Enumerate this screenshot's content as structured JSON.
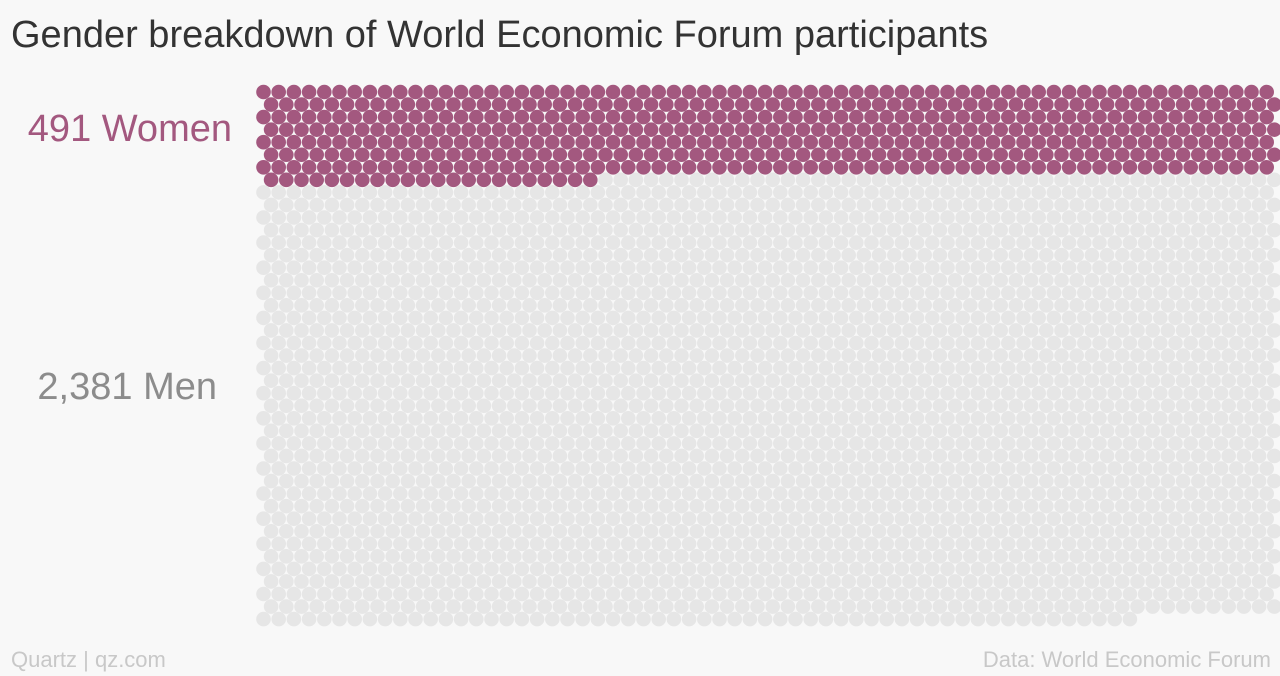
{
  "chart_data": {
    "type": "waffle",
    "title": "Gender breakdown of World Economic Forum participants",
    "series": [
      {
        "name": "Women",
        "label": "491 Women",
        "value": 491,
        "color": "#a3587f"
      },
      {
        "name": "Men",
        "label": "2,381 Men",
        "value": 2381,
        "color": "#e6e6e6"
      }
    ],
    "label_colors": {
      "Women": "#a3587f",
      "Men": "#8c8c8c"
    }
  },
  "footer": {
    "source_left": "Quartz | qz.com",
    "source_right": "Data: World Economic Forum"
  }
}
